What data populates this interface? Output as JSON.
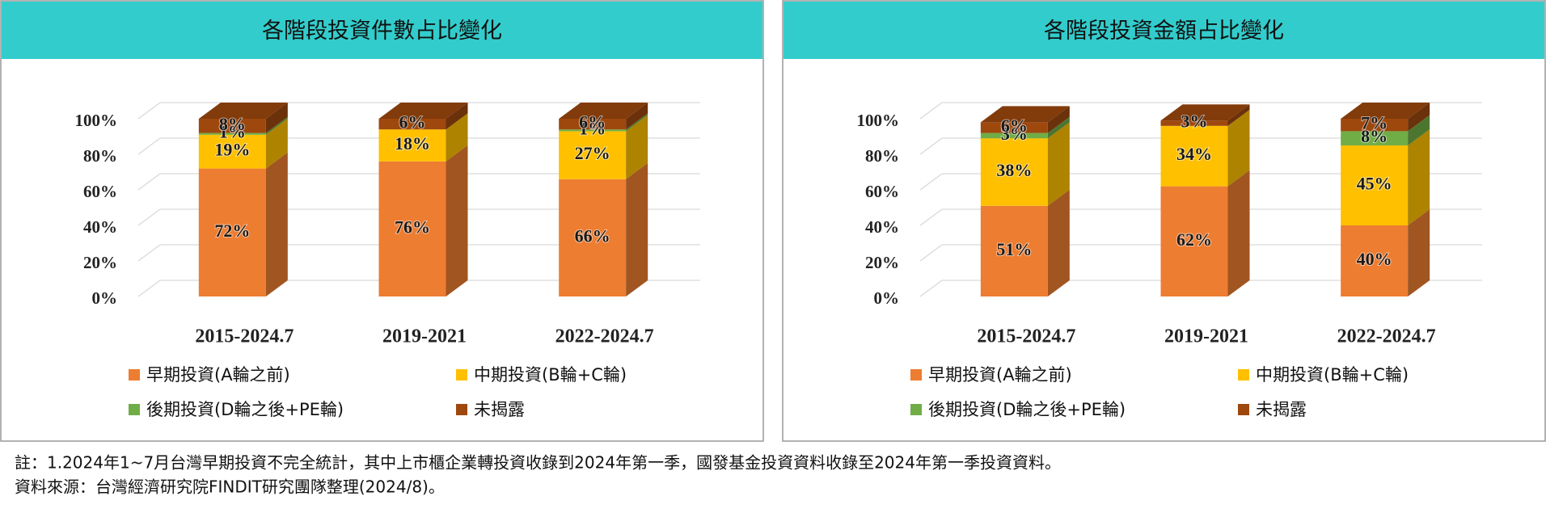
{
  "chart_data": [
    {
      "type": "bar3d_stacked",
      "title": "各階段投資件數占比變化",
      "categories": [
        "2015-2024.7",
        "2019-2021",
        "2022-2024.7"
      ],
      "series": [
        {
          "name": "早期投資(A輪之前)",
          "color": "#ED7D31",
          "values": [
            72,
            76,
            66
          ],
          "value_labels": [
            "72%",
            "76%",
            "66%"
          ]
        },
        {
          "name": "中期投資(B輪+C輪)",
          "color": "#FFC000",
          "values": [
            19,
            18,
            27
          ],
          "value_labels": [
            "19%",
            "18%",
            "27%"
          ]
        },
        {
          "name": "後期投資(D輪之後+PE輪)",
          "color": "#70AD47",
          "values": [
            1,
            null,
            1
          ],
          "value_labels": [
            "1%",
            null,
            "1%"
          ]
        },
        {
          "name": "未揭露",
          "color": "#9E480E",
          "values": [
            8,
            6,
            6
          ],
          "value_labels": [
            "8%",
            "6%",
            "6%"
          ]
        }
      ],
      "ylim": [
        0,
        100
      ],
      "yticks": [
        {
          "value": 0,
          "label": "0%"
        },
        {
          "value": 20,
          "label": "20%"
        },
        {
          "value": 40,
          "label": "40%"
        },
        {
          "value": 60,
          "label": "60%"
        },
        {
          "value": 80,
          "label": "80%"
        },
        {
          "value": 100,
          "label": "100%"
        }
      ],
      "grid": true,
      "title_color": "#33CCCC"
    },
    {
      "type": "bar3d_stacked",
      "title": "各階段投資金額占比變化",
      "categories": [
        "2015-2024.7",
        "2019-2021",
        "2022-2024.7"
      ],
      "series": [
        {
          "name": "早期投資(A輪之前)",
          "color": "#ED7D31",
          "values": [
            51,
            62,
            40
          ],
          "value_labels": [
            "51%",
            "62%",
            "40%"
          ]
        },
        {
          "name": "中期投資(B輪+C輪)",
          "color": "#FFC000",
          "values": [
            38,
            34,
            45
          ],
          "value_labels": [
            "38%",
            "34%",
            "45%"
          ]
        },
        {
          "name": "後期投資(D輪之後+PE輪)",
          "color": "#70AD47",
          "values": [
            3,
            null,
            8
          ],
          "value_labels": [
            "3%",
            null,
            "8%"
          ]
        },
        {
          "name": "未揭露",
          "color": "#9E480E",
          "values": [
            6,
            3,
            7
          ],
          "value_labels": [
            "6%",
            "3%",
            "7%"
          ]
        }
      ],
      "ylim": [
        0,
        100
      ],
      "yticks": [
        {
          "value": 0,
          "label": "0%"
        },
        {
          "value": 20,
          "label": "20%"
        },
        {
          "value": 40,
          "label": "40%"
        },
        {
          "value": 60,
          "label": "60%"
        },
        {
          "value": 80,
          "label": "80%"
        },
        {
          "value": 100,
          "label": "100%"
        }
      ],
      "grid": true,
      "title_color": "#33CCCC"
    }
  ],
  "notes": [
    "註：1.2024年1~7月台灣早期投資不完全統計，其中上市櫃企業轉投資收錄到2024年第一季，國發基金投資資料收錄至2024年第一季投資資料。",
    "資料來源：台灣經濟研究院FINDIT研究團隊整理(2024/8)。"
  ]
}
